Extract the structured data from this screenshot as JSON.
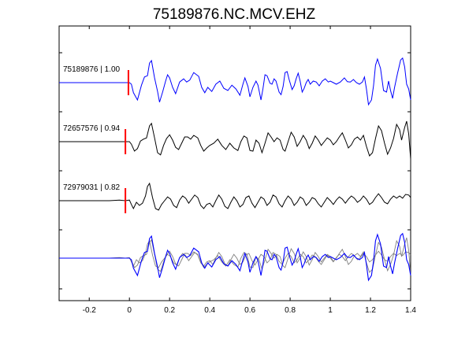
{
  "chart_data": {
    "type": "line",
    "title": "75189876.NC.MCV.EHZ",
    "xlabel": "",
    "ylabel": "",
    "xlim": [
      -0.35,
      1.4
    ],
    "xticks": [
      -0.2,
      0,
      0.2,
      0.4,
      0.6,
      0.8,
      1,
      1.2,
      1.4
    ],
    "xtick_labels": [
      "-0.2",
      "0",
      "0.2",
      "0.4",
      "0.6",
      "0.8",
      "1",
      "1.2",
      "1.4"
    ],
    "grid": false,
    "legend": "none",
    "pick_time": 0,
    "colors": {
      "primary": "#0000ff",
      "secondary": "#000000",
      "overlay": "#808080",
      "pick": "#ff0000"
    },
    "series": [
      {
        "trace_label": "75189876 | 1.00",
        "onset": -0.005,
        "color": "#0000ff",
        "points": [
          [
            -0.35,
            0
          ],
          [
            0,
            0
          ],
          [
            0.01,
            -0.05
          ],
          [
            0.02,
            -0.32
          ],
          [
            0.04,
            -0.55
          ],
          [
            0.06,
            -0.08
          ],
          [
            0.075,
            0.18
          ],
          [
            0.09,
            0.22
          ],
          [
            0.1,
            0.62
          ],
          [
            0.11,
            0.7
          ],
          [
            0.125,
            0.15
          ],
          [
            0.14,
            -0.28
          ],
          [
            0.15,
            -0.62
          ],
          [
            0.165,
            -0.3
          ],
          [
            0.18,
            0.05
          ],
          [
            0.19,
            0.25
          ],
          [
            0.2,
            0.15
          ],
          [
            0.215,
            -0.15
          ],
          [
            0.23,
            -0.35
          ],
          [
            0.25,
            0.02
          ],
          [
            0.27,
            0.12
          ],
          [
            0.285,
            0.02
          ],
          [
            0.3,
            0.08
          ],
          [
            0.32,
            0.32
          ],
          [
            0.345,
            0.2
          ],
          [
            0.36,
            -0.15
          ],
          [
            0.375,
            -0.32
          ],
          [
            0.39,
            -0.15
          ],
          [
            0.41,
            -0.28
          ],
          [
            0.43,
            -0.05
          ],
          [
            0.45,
            0.05
          ],
          [
            0.47,
            -0.18
          ],
          [
            0.49,
            -0.25
          ],
          [
            0.51,
            -0.08
          ],
          [
            0.53,
            -0.2
          ],
          [
            0.55,
            -0.4
          ],
          [
            0.565,
            -0.05
          ],
          [
            0.575,
            0.15
          ],
          [
            0.59,
            -0.12
          ],
          [
            0.6,
            -0.45
          ],
          [
            0.615,
            -0.15
          ],
          [
            0.63,
            0.05
          ],
          [
            0.64,
            -0.08
          ],
          [
            0.655,
            -0.55
          ],
          [
            0.665,
            -0.18
          ],
          [
            0.675,
            0.25
          ],
          [
            0.685,
            0.22
          ],
          [
            0.7,
            -0.02
          ],
          [
            0.71,
            -0.05
          ],
          [
            0.72,
            0.12
          ],
          [
            0.73,
            0.05
          ],
          [
            0.745,
            -0.3
          ],
          [
            0.755,
            -0.38
          ],
          [
            0.765,
            -0.12
          ],
          [
            0.775,
            0.32
          ],
          [
            0.785,
            0.35
          ],
          [
            0.795,
            0.1
          ],
          [
            0.81,
            -0.22
          ],
          [
            0.82,
            -0.1
          ],
          [
            0.83,
            0.12
          ],
          [
            0.84,
            0.3
          ],
          [
            0.85,
            0.05
          ],
          [
            0.86,
            -0.3
          ],
          [
            0.87,
            -0.18
          ],
          [
            0.88,
            0.0
          ],
          [
            0.89,
            0.1
          ],
          [
            0.9,
            -0.05
          ],
          [
            0.915,
            0.05
          ],
          [
            0.93,
            0.02
          ],
          [
            0.945,
            -0.1
          ],
          [
            0.96,
            0.05
          ],
          [
            0.975,
            0.12
          ],
          [
            0.99,
            0.02
          ],
          [
            1.0,
            0.05
          ],
          [
            1.015,
            0.0
          ],
          [
            1.03,
            -0.05
          ],
          [
            1.05,
            0.02
          ],
          [
            1.07,
            0.15
          ],
          [
            1.085,
            0.03
          ],
          [
            1.1,
            0.02
          ],
          [
            1.115,
            0.1
          ],
          [
            1.13,
            0.0
          ],
          [
            1.145,
            -0.05
          ],
          [
            1.16,
            0.02
          ],
          [
            1.17,
            0.18
          ],
          [
            1.18,
            -0.2
          ],
          [
            1.19,
            -0.7
          ],
          [
            1.205,
            -0.55
          ],
          [
            1.215,
            -0.1
          ],
          [
            1.225,
            0.55
          ],
          [
            1.235,
            0.75
          ],
          [
            1.25,
            0.45
          ],
          [
            1.265,
            -0.25
          ],
          [
            1.28,
            -0.3
          ],
          [
            1.29,
            0.05
          ],
          [
            1.3,
            -0.25
          ],
          [
            1.31,
            -0.5
          ],
          [
            1.32,
            -0.15
          ],
          [
            1.335,
            0.3
          ],
          [
            1.35,
            0.72
          ],
          [
            1.36,
            0.78
          ],
          [
            1.37,
            0.5
          ],
          [
            1.38,
            -0.05
          ],
          [
            1.39,
            -0.2
          ],
          [
            1.4,
            -0.55
          ]
        ]
      },
      {
        "trace_label": "72657576 | 0.94",
        "onset": -0.02,
        "color": "#000000",
        "points": [
          [
            -0.35,
            0
          ],
          [
            0,
            0
          ],
          [
            0.01,
            -0.08
          ],
          [
            0.025,
            -0.3
          ],
          [
            0.04,
            -0.22
          ],
          [
            0.055,
            0.02
          ],
          [
            0.07,
            0.08
          ],
          [
            0.085,
            0.12
          ],
          [
            0.1,
            0.5
          ],
          [
            0.11,
            0.58
          ],
          [
            0.125,
            0.12
          ],
          [
            0.14,
            -0.35
          ],
          [
            0.155,
            -0.42
          ],
          [
            0.17,
            -0.12
          ],
          [
            0.185,
            0.1
          ],
          [
            0.2,
            0.22
          ],
          [
            0.215,
            0.05
          ],
          [
            0.23,
            -0.18
          ],
          [
            0.245,
            -0.25
          ],
          [
            0.26,
            -0.05
          ],
          [
            0.275,
            0.15
          ],
          [
            0.29,
            0.15
          ],
          [
            0.305,
            0.08
          ],
          [
            0.32,
            0.2
          ],
          [
            0.34,
            0.12
          ],
          [
            0.355,
            -0.12
          ],
          [
            0.37,
            -0.3
          ],
          [
            0.385,
            -0.2
          ],
          [
            0.4,
            -0.12
          ],
          [
            0.42,
            -0.05
          ],
          [
            0.44,
            0.08
          ],
          [
            0.46,
            -0.12
          ],
          [
            0.48,
            -0.25
          ],
          [
            0.5,
            -0.05
          ],
          [
            0.52,
            -0.2
          ],
          [
            0.54,
            -0.28
          ],
          [
            0.555,
            0.0
          ],
          [
            0.57,
            0.18
          ],
          [
            0.585,
            0.12
          ],
          [
            0.6,
            -0.28
          ],
          [
            0.615,
            -0.3
          ],
          [
            0.63,
            0.05
          ],
          [
            0.645,
            -0.05
          ],
          [
            0.66,
            -0.35
          ],
          [
            0.675,
            -0.05
          ],
          [
            0.69,
            0.28
          ],
          [
            0.705,
            0.15
          ],
          [
            0.72,
            0.0
          ],
          [
            0.735,
            0.12
          ],
          [
            0.75,
            0.05
          ],
          [
            0.765,
            -0.25
          ],
          [
            0.775,
            -0.3
          ],
          [
            0.79,
            0.0
          ],
          [
            0.805,
            0.3
          ],
          [
            0.82,
            0.15
          ],
          [
            0.835,
            -0.15
          ],
          [
            0.85,
            0.0
          ],
          [
            0.865,
            0.2
          ],
          [
            0.88,
            0.05
          ],
          [
            0.895,
            -0.22
          ],
          [
            0.91,
            -0.05
          ],
          [
            0.925,
            0.18
          ],
          [
            0.94,
            0.05
          ],
          [
            0.955,
            -0.12
          ],
          [
            0.97,
            0.0
          ],
          [
            0.985,
            0.12
          ],
          [
            1.0,
            0.05
          ],
          [
            1.015,
            -0.1
          ],
          [
            1.03,
            0.0
          ],
          [
            1.045,
            0.15
          ],
          [
            1.06,
            0.28
          ],
          [
            1.075,
            0.05
          ],
          [
            1.09,
            -0.2
          ],
          [
            1.105,
            -0.1
          ],
          [
            1.12,
            0.08
          ],
          [
            1.135,
            0.15
          ],
          [
            1.15,
            0.05
          ],
          [
            1.165,
            0.2
          ],
          [
            1.18,
            -0.15
          ],
          [
            1.195,
            -0.45
          ],
          [
            1.21,
            -0.35
          ],
          [
            1.225,
            0.1
          ],
          [
            1.24,
            0.5
          ],
          [
            1.255,
            0.35
          ],
          [
            1.27,
            -0.05
          ],
          [
            1.285,
            -0.4
          ],
          [
            1.3,
            -0.2
          ],
          [
            1.315,
            0.1
          ],
          [
            1.33,
            0.55
          ],
          [
            1.345,
            0.38
          ],
          [
            1.355,
            0.05
          ],
          [
            1.37,
            0.45
          ],
          [
            1.38,
            0.65
          ],
          [
            1.39,
            0.25
          ],
          [
            1.4,
            -0.55
          ]
        ]
      },
      {
        "trace_label": "72979031 | 0.82",
        "onset": -0.02,
        "color": "#000000",
        "points": [
          [
            -0.35,
            0
          ],
          [
            -0.1,
            0
          ],
          [
            -0.05,
            0.02
          ],
          [
            -0.02,
            0.0
          ],
          [
            0,
            0.02
          ],
          [
            0.01,
            -0.12
          ],
          [
            0.02,
            -0.25
          ],
          [
            0.035,
            -0.05
          ],
          [
            0.05,
            -0.15
          ],
          [
            0.065,
            -0.08
          ],
          [
            0.08,
            0.15
          ],
          [
            0.09,
            0.45
          ],
          [
            0.1,
            0.55
          ],
          [
            0.115,
            0.1
          ],
          [
            0.13,
            -0.25
          ],
          [
            0.145,
            -0.3
          ],
          [
            0.16,
            -0.12
          ],
          [
            0.175,
            0.0
          ],
          [
            0.19,
            0.12
          ],
          [
            0.205,
            0.05
          ],
          [
            0.22,
            -0.15
          ],
          [
            0.235,
            -0.22
          ],
          [
            0.25,
            0.02
          ],
          [
            0.265,
            0.15
          ],
          [
            0.28,
            0.08
          ],
          [
            0.295,
            -0.08
          ],
          [
            0.31,
            0.05
          ],
          [
            0.325,
            0.18
          ],
          [
            0.34,
            0.1
          ],
          [
            0.355,
            -0.15
          ],
          [
            0.37,
            -0.25
          ],
          [
            0.385,
            -0.12
          ],
          [
            0.4,
            -0.08
          ],
          [
            0.415,
            -0.2
          ],
          [
            0.43,
            0.0
          ],
          [
            0.445,
            0.18
          ],
          [
            0.46,
            0.05
          ],
          [
            0.475,
            -0.18
          ],
          [
            0.49,
            -0.25
          ],
          [
            0.505,
            -0.05
          ],
          [
            0.52,
            0.12
          ],
          [
            0.535,
            0.0
          ],
          [
            0.55,
            -0.2
          ],
          [
            0.565,
            -0.12
          ],
          [
            0.58,
            0.1
          ],
          [
            0.595,
            0.15
          ],
          [
            0.61,
            -0.08
          ],
          [
            0.625,
            -0.22
          ],
          [
            0.64,
            -0.05
          ],
          [
            0.655,
            0.12
          ],
          [
            0.67,
            0.05
          ],
          [
            0.685,
            -0.15
          ],
          [
            0.7,
            -0.05
          ],
          [
            0.715,
            0.18
          ],
          [
            0.73,
            0.12
          ],
          [
            0.745,
            -0.1
          ],
          [
            0.76,
            -0.2
          ],
          [
            0.775,
            0.0
          ],
          [
            0.79,
            0.15
          ],
          [
            0.805,
            0.05
          ],
          [
            0.82,
            -0.15
          ],
          [
            0.835,
            -0.05
          ],
          [
            0.85,
            0.12
          ],
          [
            0.865,
            0.05
          ],
          [
            0.88,
            -0.15
          ],
          [
            0.895,
            -0.05
          ],
          [
            0.91,
            0.1
          ],
          [
            0.925,
            0.05
          ],
          [
            0.94,
            -0.1
          ],
          [
            0.955,
            -0.2
          ],
          [
            0.97,
            -0.05
          ],
          [
            0.985,
            0.1
          ],
          [
            1.0,
            0.0
          ],
          [
            1.015,
            -0.12
          ],
          [
            1.03,
            0.02
          ],
          [
            1.045,
            0.12
          ],
          [
            1.06,
            0.05
          ],
          [
            1.075,
            -0.08
          ],
          [
            1.09,
            0.05
          ],
          [
            1.105,
            0.15
          ],
          [
            1.12,
            0.08
          ],
          [
            1.135,
            -0.05
          ],
          [
            1.15,
            0.02
          ],
          [
            1.165,
            0.15
          ],
          [
            1.18,
            0.05
          ],
          [
            1.195,
            -0.12
          ],
          [
            1.21,
            -0.05
          ],
          [
            1.225,
            0.1
          ],
          [
            1.24,
            0.22
          ],
          [
            1.255,
            0.1
          ],
          [
            1.27,
            -0.05
          ],
          [
            1.285,
            -0.1
          ],
          [
            1.3,
            0.05
          ],
          [
            1.315,
            0.15
          ],
          [
            1.33,
            0.08
          ],
          [
            1.345,
            0.15
          ],
          [
            1.36,
            0.08
          ],
          [
            1.375,
            0.2
          ],
          [
            1.39,
            0.18
          ],
          [
            1.4,
            0.1
          ]
        ]
      }
    ]
  }
}
